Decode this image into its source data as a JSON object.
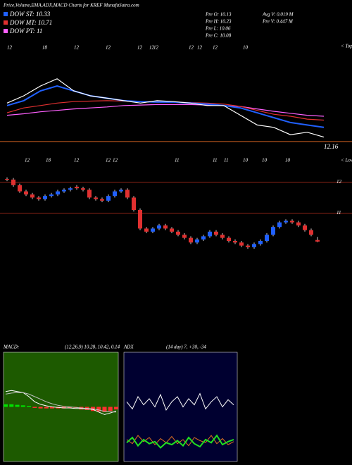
{
  "header": {
    "title": "Price,Volume,EMA,ADX,MACD Charts for KREF MunafaSutra.com",
    "legend": [
      {
        "label": "DOW ST: 10.33",
        "color": "#2060ff"
      },
      {
        "label": "DOW MT: 10.71",
        "color": "#e03030"
      },
      {
        "label": "DOW PT: 11",
        "color": "#ff60ff"
      }
    ],
    "stats": [
      "Pre  O: 10.13",
      "Pre  H: 10.23",
      "Pre  L: 10.06",
      "Pre  C: 10.08"
    ],
    "volume": [
      "Avg V: 0.019 M",
      "Pre  V: 0.447 M"
    ]
  },
  "chart_data": [
    {
      "type": "line",
      "annotation": "< Tops",
      "x_labels": [
        "12",
        "18",
        "12",
        "12",
        "12",
        "12",
        "12",
        "12",
        "12",
        "12",
        "10"
      ],
      "ylim": [
        12.1,
        14.2
      ],
      "hline": 12.16,
      "series": [
        {
          "color": "#ff60ff",
          "values": [
            12.7,
            12.73,
            12.77,
            12.8,
            12.83,
            12.85,
            12.87,
            12.9,
            12.91,
            12.92,
            12.92,
            12.92,
            12.91,
            12.9,
            12.88,
            12.83,
            12.78,
            12.74,
            12.7,
            12.68
          ]
        },
        {
          "color": "#e03030",
          "values": [
            12.75,
            12.85,
            12.9,
            12.95,
            12.98,
            12.99,
            13.0,
            12.99,
            12.98,
            12.98,
            12.97,
            12.96,
            12.95,
            12.93,
            12.88,
            12.8,
            12.72,
            12.68,
            12.62,
            12.6
          ]
        },
        {
          "color": "#2060ff",
          "values": [
            12.9,
            13.0,
            13.2,
            13.3,
            13.2,
            13.1,
            13.05,
            13.0,
            12.98,
            12.97,
            12.97,
            12.95,
            12.93,
            12.9,
            12.85,
            12.75,
            12.65,
            12.55,
            12.5,
            12.45
          ]
        },
        {
          "color": "#ffffff",
          "values": [
            12.95,
            13.1,
            13.3,
            13.45,
            13.2,
            13.1,
            13.05,
            13.0,
            12.95,
            13.0,
            12.98,
            12.95,
            12.9,
            12.9,
            12.7,
            12.5,
            12.45,
            12.3,
            12.35,
            12.25
          ]
        }
      ]
    },
    {
      "type": "candlestick",
      "annotation": "< Lows",
      "x_labels": [
        "12",
        "18",
        "12",
        "12",
        "12",
        "11",
        "11",
        "11",
        "10",
        "10",
        "10"
      ],
      "ylim": [
        7.6,
        12.6
      ],
      "yticks": [
        12,
        11
      ],
      "up_color": "#2060ff",
      "down_color": "#e03030",
      "open": [
        12.1,
        12.08,
        11.9,
        11.7,
        11.6,
        11.5,
        11.45,
        11.55,
        11.6,
        11.7,
        11.75,
        11.85,
        11.8,
        11.75,
        11.5,
        11.45,
        11.4,
        11.55,
        11.7,
        11.75,
        11.5,
        11.1,
        10.5,
        10.4,
        10.5,
        10.6,
        10.5,
        10.4,
        10.3,
        10.2,
        10.05,
        10.15,
        10.25,
        10.4,
        10.3,
        10.2,
        10.1,
        10.05,
        9.95,
        9.9,
        10,
        10.1,
        10.3,
        10.55,
        10.7,
        10.75,
        10.7,
        10.6,
        10.45,
        10.13
      ],
      "high": [
        12.15,
        12.13,
        11.95,
        11.75,
        11.65,
        11.55,
        11.6,
        11.65,
        11.75,
        11.8,
        11.85,
        11.9,
        11.85,
        11.8,
        11.55,
        11.5,
        11.6,
        11.75,
        11.8,
        11.8,
        11.55,
        11.15,
        10.55,
        10.55,
        10.65,
        10.65,
        10.55,
        10.45,
        10.35,
        10.25,
        10.2,
        10.3,
        10.45,
        10.45,
        10.35,
        10.25,
        10.15,
        10.1,
        10,
        10.05,
        10.15,
        10.35,
        10.6,
        10.75,
        10.8,
        10.8,
        10.75,
        10.65,
        10.5,
        10.23
      ],
      "low": [
        12.03,
        11.85,
        11.65,
        11.55,
        11.45,
        11.4,
        11.4,
        11.5,
        11.55,
        11.65,
        11.7,
        11.75,
        11.7,
        11.45,
        11.4,
        11.35,
        11.35,
        11.5,
        11.65,
        11.45,
        11.05,
        10.45,
        10.35,
        10.35,
        10.45,
        10.45,
        10.35,
        10.25,
        10.15,
        10,
        10,
        10.1,
        10.2,
        10.25,
        10.15,
        10.05,
        10,
        9.9,
        9.85,
        9.85,
        9.95,
        10.05,
        10.25,
        10.5,
        10.65,
        10.65,
        10.55,
        10.4,
        10.25,
        10.06
      ],
      "close": [
        12.08,
        11.9,
        11.7,
        11.6,
        11.5,
        11.45,
        11.55,
        11.6,
        11.7,
        11.75,
        11.8,
        11.8,
        11.75,
        11.5,
        11.45,
        11.4,
        11.55,
        11.7,
        11.75,
        11.5,
        11.1,
        10.5,
        10.4,
        10.5,
        10.6,
        10.5,
        10.4,
        10.3,
        10.2,
        10.05,
        10.15,
        10.25,
        10.4,
        10.3,
        10.2,
        10.1,
        10.05,
        9.95,
        9.9,
        10,
        10.1,
        10.3,
        10.55,
        10.7,
        10.75,
        10.7,
        10.6,
        10.45,
        10.3,
        10.08
      ]
    },
    {
      "type": "macd",
      "title": "MACD:",
      "subtitle": "(12,26,9) 10.28, 10.42, 0.14",
      "ylim": [
        -1,
        1
      ],
      "histogram": [
        0.05,
        0.05,
        0.04,
        0.03,
        0.02,
        -0.02,
        -0.03,
        -0.03,
        -0.03,
        -0.03,
        -0.03,
        -0.02,
        -0.02,
        -0.05,
        -0.06,
        -0.08,
        -0.09,
        -0.1,
        -0.08,
        -0.05
      ],
      "series": [
        {
          "color": "#ffffff",
          "values": [
            0.3,
            0.32,
            0.3,
            0.28,
            0.2,
            0.1,
            0.05,
            0.02,
            0,
            -0.01,
            -0.02,
            -0.02,
            -0.03,
            -0.03,
            -0.04,
            -0.05,
            -0.1,
            -0.15,
            -0.12,
            -0.08
          ]
        },
        {
          "color": "#c0c0c0",
          "values": [
            0.25,
            0.27,
            0.28,
            0.28,
            0.25,
            0.2,
            0.15,
            0.1,
            0.06,
            0.03,
            0.01,
            0,
            -0.01,
            -0.02,
            -0.03,
            -0.04,
            -0.06,
            -0.09,
            -0.1,
            -0.1
          ]
        }
      ]
    },
    {
      "type": "adx",
      "title": "ADX",
      "subtitle": "(14 day) 7, +30, -34",
      "ylim": [
        0,
        100
      ],
      "series": [
        {
          "color": "#ffffff",
          "values": [
            55,
            48,
            60,
            52,
            58,
            50,
            62,
            47,
            55,
            60,
            50,
            58,
            52,
            63,
            48,
            55,
            60,
            50,
            57,
            52
          ]
        },
        {
          "color": "#e07020",
          "values": [
            18,
            14,
            22,
            16,
            20,
            13,
            19,
            15,
            21,
            14,
            18,
            12,
            20,
            17,
            15,
            22,
            14,
            19,
            13,
            16
          ]
        },
        {
          "color": "#20e020",
          "values": [
            15,
            20,
            12,
            18,
            14,
            16,
            10,
            15,
            13,
            17,
            12,
            20,
            14,
            11,
            18,
            15,
            22,
            13,
            16,
            18
          ]
        }
      ]
    }
  ]
}
